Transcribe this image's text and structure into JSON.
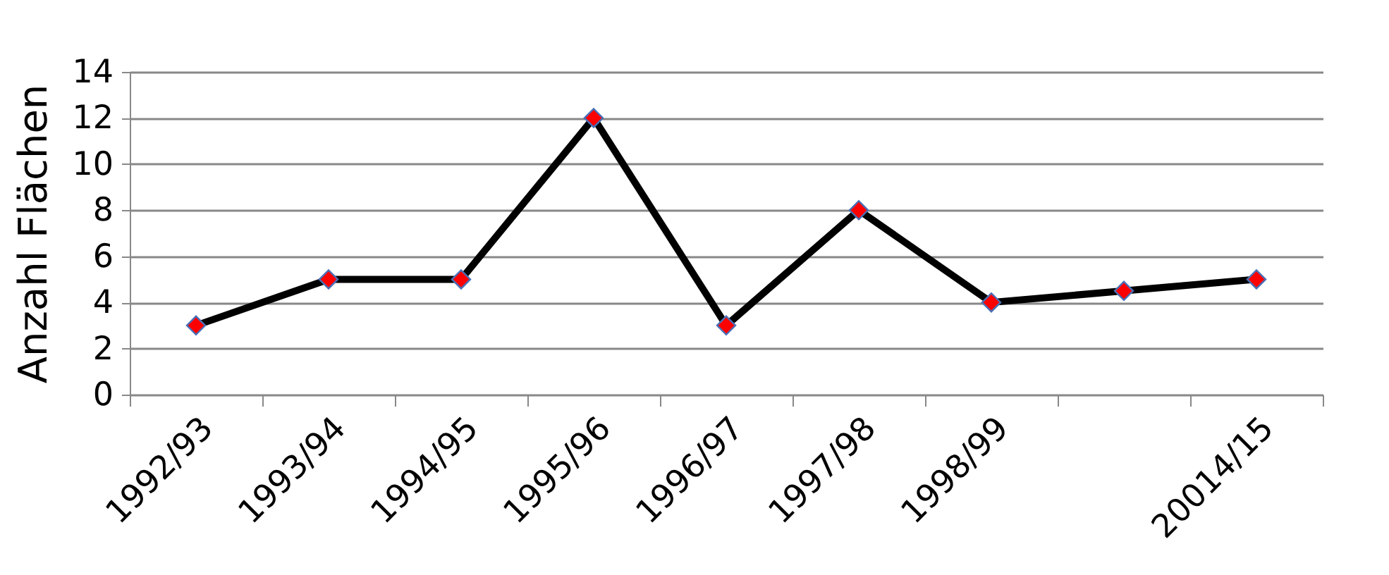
{
  "chart_data": {
    "type": "line",
    "ylabel": "Anzahl Flächen",
    "categories": [
      "1992/93",
      "1993/94",
      "1994/95",
      "1995/96",
      "1996/97",
      "1997/98",
      "1998/99",
      null,
      "20014/15"
    ],
    "series": [
      {
        "color": "#000000",
        "values": [
          3,
          5,
          5,
          12,
          3,
          8,
          4,
          4.5,
          5
        ]
      }
    ],
    "ylim": [
      0,
      14
    ],
    "yticks": [
      0,
      2,
      4,
      6,
      8,
      10,
      12,
      14
    ],
    "grid": "y",
    "marker": "diamond",
    "line_style": "solid"
  }
}
